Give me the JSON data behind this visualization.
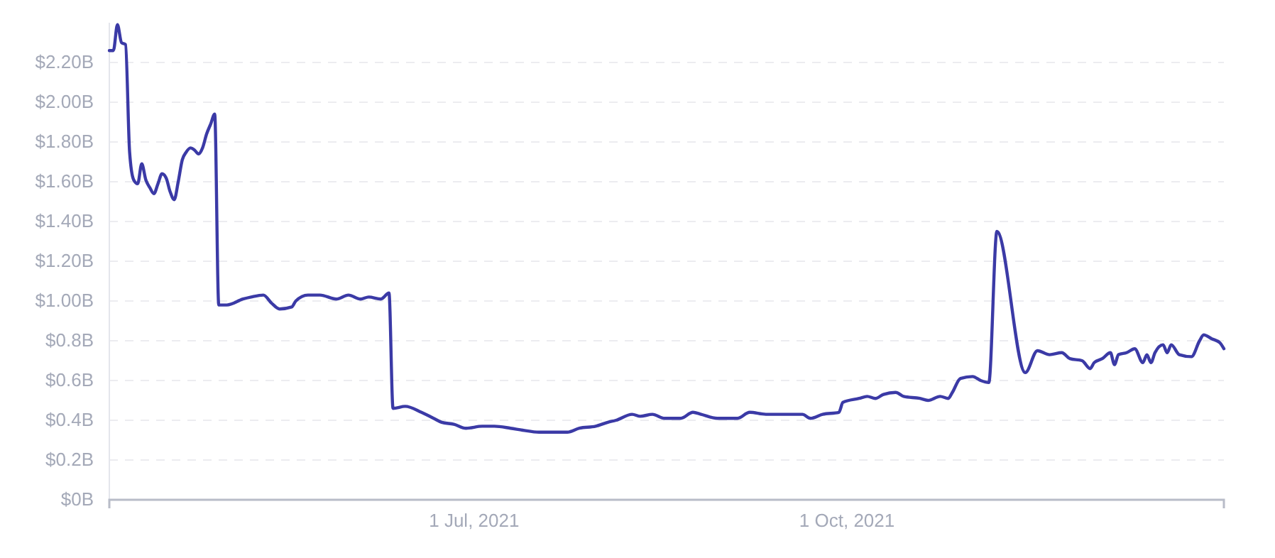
{
  "chart_data": {
    "type": "line",
    "x": [
      "2021-04-02",
      "2021-04-03",
      "2021-04-04",
      "2021-04-05",
      "2021-04-06",
      "2021-04-07",
      "2021-04-08",
      "2021-04-09",
      "2021-04-10",
      "2021-04-11",
      "2021-04-12",
      "2021-04-13",
      "2021-04-14",
      "2021-04-15",
      "2021-04-16",
      "2021-04-17",
      "2021-04-18",
      "2021-04-19",
      "2021-04-20",
      "2021-04-21",
      "2021-04-22",
      "2021-04-23",
      "2021-04-24",
      "2021-04-25",
      "2021-04-26",
      "2021-04-27",
      "2021-04-28",
      "2021-04-29",
      "2021-05-01",
      "2021-05-05",
      "2021-05-07",
      "2021-05-10",
      "2021-05-12",
      "2021-05-14",
      "2021-05-17",
      "2021-05-18",
      "2021-05-21",
      "2021-05-24",
      "2021-05-28",
      "2021-05-31",
      "2021-06-03",
      "2021-06-05",
      "2021-06-08",
      "2021-06-10",
      "2021-06-11",
      "2021-06-14",
      "2021-06-18",
      "2021-06-21",
      "2021-06-23",
      "2021-06-26",
      "2021-06-29",
      "2021-07-03",
      "2021-07-06",
      "2021-07-10",
      "2021-07-13",
      "2021-07-17",
      "2021-07-24",
      "2021-07-27",
      "2021-07-31",
      "2021-08-03",
      "2021-08-05",
      "2021-08-09",
      "2021-08-11",
      "2021-08-14",
      "2021-08-17",
      "2021-08-21",
      "2021-08-24",
      "2021-08-26",
      "2021-08-30",
      "2021-09-04",
      "2021-09-07",
      "2021-09-11",
      "2021-09-20",
      "2021-09-22",
      "2021-09-25",
      "2021-09-29",
      "2021-09-30",
      "2021-10-04",
      "2021-10-06",
      "2021-10-08",
      "2021-10-10",
      "2021-10-13",
      "2021-10-15",
      "2021-10-19",
      "2021-10-21",
      "2021-10-24",
      "2021-10-26",
      "2021-10-27",
      "2021-10-29",
      "2021-11-01",
      "2021-11-03",
      "2021-11-05",
      "2021-11-07",
      "2021-11-14",
      "2021-11-17",
      "2021-11-20",
      "2021-11-23",
      "2021-11-25",
      "2021-11-28",
      "2021-11-30",
      "2021-12-01",
      "2021-12-03",
      "2021-12-05",
      "2021-12-06",
      "2021-12-07",
      "2021-12-09",
      "2021-12-11",
      "2021-12-13",
      "2021-12-14",
      "2021-12-15",
      "2021-12-16",
      "2021-12-18",
      "2021-12-19",
      "2021-12-20",
      "2021-12-22",
      "2021-12-25",
      "2021-12-27",
      "2021-12-28",
      "2021-12-30",
      "2022-01-01",
      "2022-01-02"
    ],
    "series": [
      {
        "color": "#3b3aa6",
        "values": [
          2.26,
          2.26,
          2.39,
          2.3,
          2.29,
          1.75,
          1.61,
          1.59,
          1.69,
          1.61,
          1.57,
          1.54,
          1.59,
          1.64,
          1.62,
          1.55,
          1.51,
          1.6,
          1.71,
          1.75,
          1.77,
          1.76,
          1.74,
          1.77,
          1.84,
          1.89,
          1.94,
          0.98,
          0.98,
          1.01,
          1.02,
          1.03,
          0.99,
          0.96,
          0.97,
          1.0,
          1.03,
          1.03,
          1.01,
          1.03,
          1.01,
          1.02,
          1.01,
          1.04,
          0.46,
          0.47,
          0.44,
          0.41,
          0.39,
          0.38,
          0.36,
          0.37,
          0.37,
          0.36,
          0.35,
          0.34,
          0.34,
          0.36,
          0.37,
          0.39,
          0.4,
          0.43,
          0.42,
          0.43,
          0.41,
          0.41,
          0.44,
          0.43,
          0.41,
          0.41,
          0.44,
          0.43,
          0.43,
          0.41,
          0.43,
          0.44,
          0.49,
          0.51,
          0.52,
          0.51,
          0.53,
          0.54,
          0.52,
          0.51,
          0.5,
          0.52,
          0.51,
          0.54,
          0.61,
          0.62,
          0.6,
          0.59,
          1.35,
          0.64,
          0.75,
          0.73,
          0.74,
          0.71,
          0.7,
          0.66,
          0.69,
          0.71,
          0.74,
          0.68,
          0.73,
          0.74,
          0.76,
          0.69,
          0.73,
          0.69,
          0.74,
          0.78,
          0.74,
          0.78,
          0.73,
          0.72,
          0.8,
          0.83,
          0.81,
          0.79,
          0.76
        ]
      }
    ],
    "xlim": [
      "2021-04-02",
      "2022-01-02"
    ],
    "xticks": [
      {
        "value": "2021-07-01",
        "label": "1 Jul, 2021"
      },
      {
        "value": "2021-10-01",
        "label": "1 Oct, 2021"
      }
    ],
    "ylim": [
      0,
      2.4
    ],
    "yticks": [
      {
        "value": 0,
        "label": "$0B"
      },
      {
        "value": 0.2,
        "label": "$0.2B"
      },
      {
        "value": 0.4,
        "label": "$0.4B"
      },
      {
        "value": 0.6,
        "label": "$0.6B"
      },
      {
        "value": 0.8,
        "label": "$0.8B"
      },
      {
        "value": 1.0,
        "label": "$1.00B"
      },
      {
        "value": 1.2,
        "label": "$1.20B"
      },
      {
        "value": 1.4,
        "label": "$1.40B"
      },
      {
        "value": 1.6,
        "label": "$1.60B"
      },
      {
        "value": 1.8,
        "label": "$1.80B"
      },
      {
        "value": 2.0,
        "label": "$2.00B"
      },
      {
        "value": 2.2,
        "label": "$2.20B"
      }
    ],
    "grid": "y",
    "line_style": "solid",
    "marker": "none",
    "legend": false
  }
}
